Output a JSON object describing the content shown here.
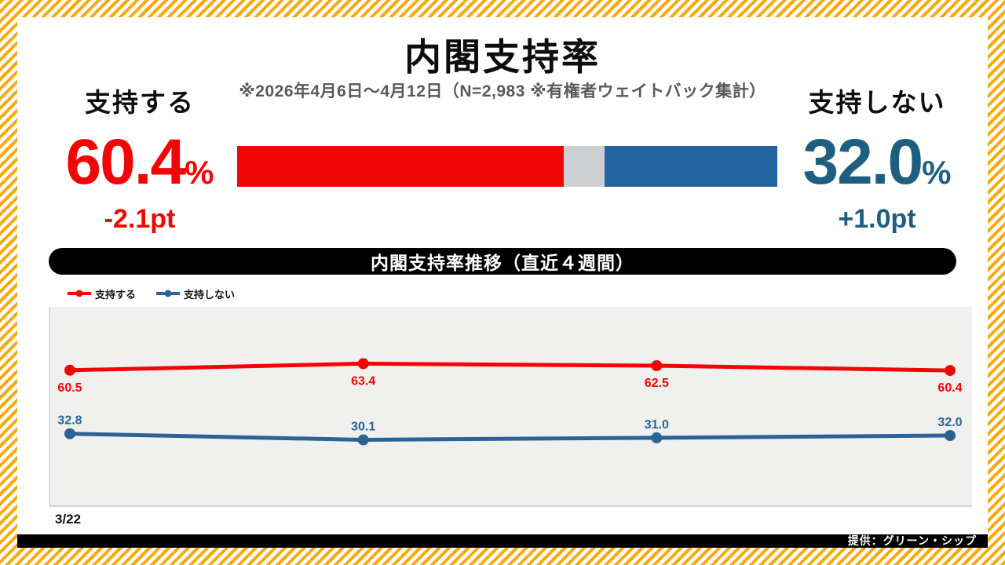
{
  "page": {
    "title": "内閣支持率",
    "subtitle": "※2026年4月6日～4月12日（N=2,983 ※有権者ウェイトバック集計）",
    "footer": "提供：グリーン・シップ"
  },
  "summary": {
    "approve": {
      "label": "支持する",
      "value": "60.4",
      "unit": "%",
      "change": "-2.1pt"
    },
    "disapprove": {
      "label": "支持しない",
      "value": "32.0",
      "unit": "%",
      "change": "+1.0pt"
    },
    "bar": {
      "approve_pct": 60.4,
      "neutral_pct": 7.6,
      "disapprove_pct": 32.0
    }
  },
  "colors": {
    "red": "#f20505",
    "blue_text": "#1e5f80",
    "blue_bar": "#2263a0",
    "blue_line": "#2b6394",
    "gray_bar": "#cdd0d2",
    "stripe_yellow": "#f8a90c",
    "subtitle_gray": "#595959",
    "plot_bg": "#f0f0ef"
  },
  "chart_data": {
    "type": "line",
    "title": "内閣支持率推移（直近４週間）",
    "x_labels": [
      "3/22"
    ],
    "n_points": 4,
    "series": [
      {
        "name": "支持する",
        "color": "#f20505",
        "values": [
          60.5,
          63.4,
          62.5,
          60.4
        ]
      },
      {
        "name": "支持しない",
        "color": "#2b6394",
        "values": [
          32.8,
          30.1,
          31.0,
          32.0
        ]
      }
    ],
    "ylim": [
      1.5,
      88.2
    ],
    "grid": false,
    "legend_position": "top-left",
    "point_labels": true
  }
}
